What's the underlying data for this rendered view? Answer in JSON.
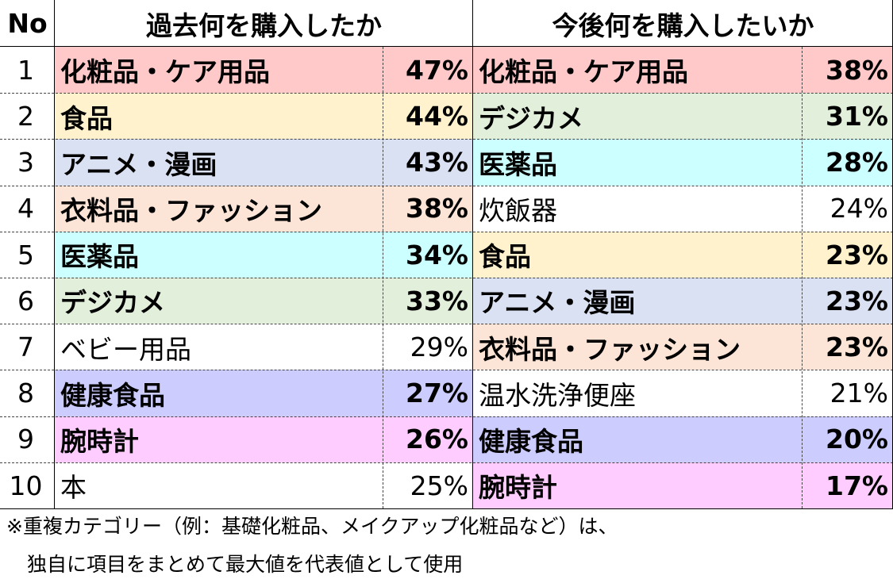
{
  "header": {
    "no_label": "No",
    "past_title": "過去何を購入したか",
    "future_title": "今後何を購入したいか"
  },
  "colors": {
    "cosmetics": "#ffc9c9",
    "food": "#fff2cc",
    "anime": "#dae1f2",
    "clothing": "#fce4d6",
    "medicine": "#ccffff",
    "camera": "#e2efda",
    "health": "#ccccff",
    "watch": "#ffccff",
    "none": "#ffffff"
  },
  "rows": [
    {
      "no": "1",
      "past": {
        "name": "化粧品・ケア用品",
        "pct": "47%",
        "color": "cosmetics",
        "bold": true
      },
      "future": {
        "name": "化粧品・ケア用品",
        "pct": "38%",
        "color": "cosmetics",
        "bold": true
      }
    },
    {
      "no": "2",
      "past": {
        "name": "食品",
        "pct": "44%",
        "color": "food",
        "bold": true
      },
      "future": {
        "name": "デジカメ",
        "pct": "31%",
        "color": "camera",
        "bold": true
      }
    },
    {
      "no": "3",
      "past": {
        "name": "アニメ・漫画",
        "pct": "43%",
        "color": "anime",
        "bold": true
      },
      "future": {
        "name": "医薬品",
        "pct": "28%",
        "color": "medicine",
        "bold": true
      }
    },
    {
      "no": "4",
      "past": {
        "name": "衣料品・ファッション",
        "pct": "38%",
        "color": "clothing",
        "bold": true
      },
      "future": {
        "name": "炊飯器",
        "pct": "24%",
        "color": "none",
        "bold": false
      }
    },
    {
      "no": "5",
      "past": {
        "name": "医薬品",
        "pct": "34%",
        "color": "medicine",
        "bold": true
      },
      "future": {
        "name": "食品",
        "pct": "23%",
        "color": "food",
        "bold": true
      }
    },
    {
      "no": "6",
      "past": {
        "name": "デジカメ",
        "pct": "33%",
        "color": "camera",
        "bold": true
      },
      "future": {
        "name": "アニメ・漫画",
        "pct": "23%",
        "color": "anime",
        "bold": true
      }
    },
    {
      "no": "7",
      "past": {
        "name": "ベビー用品",
        "pct": "29%",
        "color": "none",
        "bold": false
      },
      "future": {
        "name": "衣料品・ファッション",
        "pct": "23%",
        "color": "clothing",
        "bold": true
      }
    },
    {
      "no": "8",
      "past": {
        "name": "健康食品",
        "pct": "27%",
        "color": "health",
        "bold": true
      },
      "future": {
        "name": "温水洗浄便座",
        "pct": "21%",
        "color": "none",
        "bold": false
      }
    },
    {
      "no": "9",
      "past": {
        "name": "腕時計",
        "pct": "26%",
        "color": "watch",
        "bold": true
      },
      "future": {
        "name": "健康食品",
        "pct": "20%",
        "color": "health",
        "bold": true
      }
    },
    {
      "no": "10",
      "past": {
        "name": "本",
        "pct": "25%",
        "color": "none",
        "bold": false
      },
      "future": {
        "name": "腕時計",
        "pct": "17%",
        "color": "watch",
        "bold": true
      }
    }
  ],
  "footnote": {
    "line1": "※重複カテゴリー（例：基礎化粧品、メイクアップ化粧品など）は、",
    "line2": "独自に項目をまとめて最大値を代表値として使用"
  }
}
